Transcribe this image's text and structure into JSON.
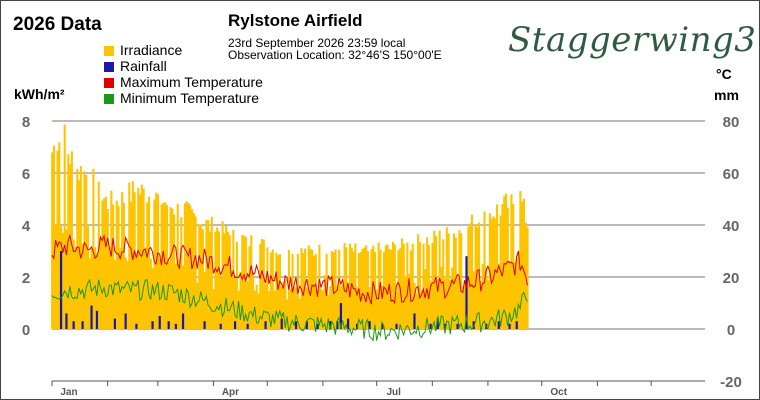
{
  "header": {
    "title": "2026 Data",
    "station": "Rylstone Airfield",
    "observation_line1": "23rd September 2026  23:59 local",
    "observation_line2": "Observation Location:   32°46'S 150°00'E",
    "logo_text": "Staggerwing3"
  },
  "legend": [
    {
      "label": "Irradiance",
      "color": "#ffc400"
    },
    {
      "label": "Rainfall",
      "color": "#1a1aa8"
    },
    {
      "label": "Maximum Temperature",
      "color": "#e00000"
    },
    {
      "label": "Minimum Temperature",
      "color": "#1a9a1a"
    }
  ],
  "axes": {
    "left_unit": "kWh/m²",
    "right_unit_temp": "°C",
    "right_unit_rain": "mm",
    "left_ticks": [
      "8",
      "6",
      "4",
      "2",
      "0"
    ],
    "right_ticks": [
      "80",
      "60",
      "40",
      "20",
      "0",
      "-20"
    ],
    "month_labels": [
      "Jan",
      "Apr",
      "Jul",
      "Oct"
    ]
  },
  "chart_data": {
    "type": "bar",
    "x_range_days": [
      1,
      365
    ],
    "last_day": 266,
    "left_ylim": [
      0,
      8
    ],
    "right_ylim": [
      -20,
      80
    ],
    "grid": true,
    "month_ticks_day": [
      1,
      32,
      60,
      91,
      121,
      152,
      182,
      213,
      244,
      274,
      305,
      335
    ],
    "month_label_day": {
      "Jan": 1,
      "Apr": 91,
      "Jul": 182,
      "Oct": 274
    },
    "irradiance_anchors": [
      [
        1,
        7.4
      ],
      [
        4,
        7.9
      ],
      [
        8,
        7.9
      ],
      [
        12,
        7.0
      ],
      [
        16,
        6.6
      ],
      [
        22,
        6.4
      ],
      [
        27,
        5.6
      ],
      [
        33,
        5.2
      ],
      [
        40,
        5.4
      ],
      [
        48,
        5.8
      ],
      [
        55,
        5.6
      ],
      [
        62,
        5.4
      ],
      [
        70,
        5.0
      ],
      [
        78,
        4.8
      ],
      [
        86,
        4.4
      ],
      [
        95,
        4.1
      ],
      [
        105,
        3.8
      ],
      [
        115,
        3.6
      ],
      [
        125,
        3.3
      ],
      [
        135,
        3.2
      ],
      [
        145,
        3.2
      ],
      [
        155,
        3.3
      ],
      [
        165,
        3.3
      ],
      [
        175,
        3.2
      ],
      [
        185,
        3.3
      ],
      [
        195,
        3.4
      ],
      [
        205,
        3.6
      ],
      [
        215,
        3.8
      ],
      [
        225,
        4.0
      ],
      [
        235,
        4.4
      ],
      [
        245,
        4.8
      ],
      [
        255,
        5.2
      ],
      [
        262,
        5.5
      ],
      [
        266,
        4.4
      ]
    ],
    "tmax_anchors": [
      [
        1,
        30
      ],
      [
        10,
        32
      ],
      [
        20,
        30
      ],
      [
        30,
        32
      ],
      [
        40,
        31
      ],
      [
        55,
        30
      ],
      [
        70,
        28
      ],
      [
        85,
        27
      ],
      [
        95,
        25
      ],
      [
        105,
        23
      ],
      [
        115,
        21
      ],
      [
        130,
        18
      ],
      [
        145,
        17
      ],
      [
        160,
        16
      ],
      [
        175,
        14
      ],
      [
        185,
        14
      ],
      [
        200,
        15
      ],
      [
        215,
        16
      ],
      [
        230,
        17
      ],
      [
        245,
        20
      ],
      [
        255,
        23
      ],
      [
        262,
        26
      ],
      [
        266,
        20
      ]
    ],
    "tmin_anchors": [
      [
        1,
        14
      ],
      [
        10,
        15
      ],
      [
        20,
        15
      ],
      [
        30,
        16
      ],
      [
        40,
        15
      ],
      [
        55,
        15
      ],
      [
        70,
        14
      ],
      [
        85,
        11
      ],
      [
        95,
        9
      ],
      [
        105,
        7
      ],
      [
        115,
        5
      ],
      [
        130,
        3
      ],
      [
        145,
        2
      ],
      [
        160,
        1
      ],
      [
        175,
        0
      ],
      [
        185,
        -1
      ],
      [
        200,
        0
      ],
      [
        215,
        1
      ],
      [
        230,
        2
      ],
      [
        245,
        3
      ],
      [
        255,
        5
      ],
      [
        262,
        8
      ],
      [
        266,
        14
      ]
    ],
    "rain_events": [
      [
        6,
        30
      ],
      [
        9,
        6
      ],
      [
        13,
        3
      ],
      [
        18,
        3
      ],
      [
        23,
        9
      ],
      [
        26,
        7
      ],
      [
        36,
        4
      ],
      [
        42,
        6
      ],
      [
        48,
        2
      ],
      [
        57,
        3
      ],
      [
        61,
        5
      ],
      [
        66,
        3
      ],
      [
        70,
        2
      ],
      [
        74,
        6
      ],
      [
        86,
        3
      ],
      [
        95,
        2
      ],
      [
        103,
        3
      ],
      [
        110,
        2
      ],
      [
        120,
        3
      ],
      [
        129,
        4
      ],
      [
        137,
        3
      ],
      [
        143,
        3
      ],
      [
        149,
        2
      ],
      [
        156,
        3
      ],
      [
        160,
        3
      ],
      [
        162,
        10
      ],
      [
        166,
        4
      ],
      [
        171,
        2
      ],
      [
        178,
        3
      ],
      [
        185,
        2
      ],
      [
        193,
        2
      ],
      [
        203,
        6
      ],
      [
        212,
        2
      ],
      [
        216,
        4
      ],
      [
        220,
        2
      ],
      [
        227,
        2
      ],
      [
        232,
        28
      ],
      [
        236,
        3
      ],
      [
        243,
        2
      ],
      [
        250,
        3
      ],
      [
        256,
        2
      ],
      [
        260,
        3
      ]
    ]
  }
}
